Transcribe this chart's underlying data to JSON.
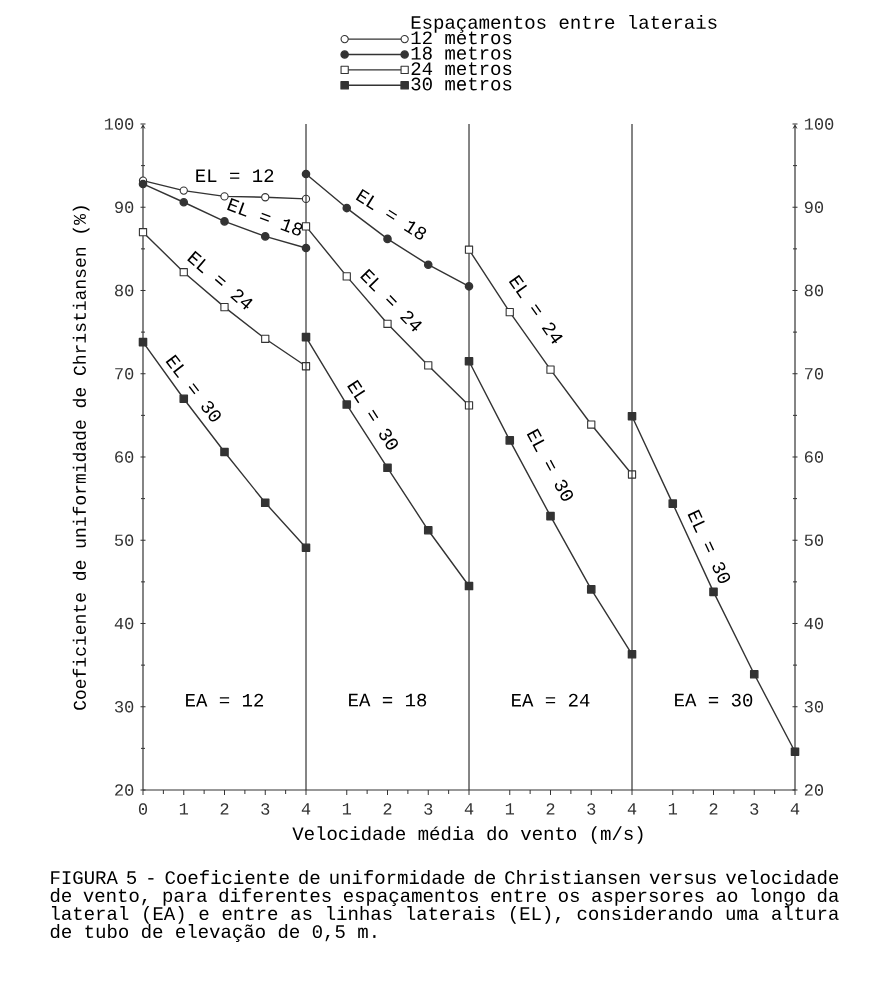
{
  "chart_data": [
    {
      "type": "line",
      "x": [
        0,
        1,
        2,
        3,
        4
      ],
      "xlim": [
        0,
        4
      ],
      "ylim": [
        20,
        100
      ],
      "xticks": [
        0,
        1,
        2,
        3,
        4
      ],
      "yticks": [
        20,
        30,
        40,
        50,
        60,
        70,
        80,
        90,
        100
      ],
      "ylabel": "Coeficiente de uniformidade de Christiansen (%)",
      "series": [
        {
          "color": "#333333",
          "marker": "circle",
          "values": [
            93.2,
            92.0,
            91.3,
            91.2,
            91.0
          ]
        },
        {
          "color": "#333333",
          "marker": "circle",
          "values": [
            92.8,
            90.6,
            88.3,
            86.5,
            85.1
          ]
        },
        {
          "color": "#333333",
          "marker": "square",
          "values": [
            87.0,
            82.2,
            78.0,
            74.2,
            70.9
          ]
        },
        {
          "color": "#333333",
          "marker": "square",
          "values": [
            73.8,
            67.0,
            60.6,
            54.5,
            49.1
          ]
        }
      ],
      "annotations": [
        "EL = 12",
        "EL = 18",
        "EL = 24",
        "EL = 30",
        "EA = 12",
        "FIGURA 5 - Coeficiente de uniformidade de Christiansen versus velocidade de vento, para diferentes espaçamentos entre os aspersores ao longo da lateral (EA) e entre as linhas laterais (EL), considerando uma altura de tubo de elevação de 0,5 m."
      ]
    },
    {
      "type": "line",
      "x": [
        0,
        1,
        2,
        3,
        4
      ],
      "xlim": [
        0,
        4
      ],
      "ylim": [
        20,
        100
      ],
      "xticks": [
        1,
        2,
        3,
        4
      ],
      "tick_labels": "x",
      "xlabel": "Velocidade média do vento (m/s)",
      "series": [
        {
          "color": "#333333",
          "marker": "circle",
          "values": [
            null,
            null,
            null,
            null,
            null
          ]
        },
        {
          "color": "#333333",
          "marker": "circle",
          "values": [
            94.0,
            89.9,
            86.2,
            83.1,
            80.5
          ]
        },
        {
          "color": "#333333",
          "marker": "square",
          "values": [
            87.7,
            81.7,
            76.0,
            71.0,
            66.2
          ]
        },
        {
          "color": "#333333",
          "marker": "square",
          "values": [
            74.4,
            66.3,
            58.7,
            51.2,
            44.5
          ]
        }
      ],
      "annotations": [
        "EL = 18",
        "EL = 24",
        "EL = 30",
        "EA = 18"
      ]
    },
    {
      "type": "line",
      "x": [
        0,
        1,
        2,
        3,
        4
      ],
      "xlim": [
        0,
        4
      ],
      "ylim": [
        20,
        100
      ],
      "xticks": [
        1,
        2,
        3,
        4
      ],
      "tick_labels": "x",
      "series": [
        {
          "color": "#333333",
          "marker": "circle",
          "values": [
            null,
            null,
            null,
            null,
            null
          ]
        },
        {
          "color": "#333333",
          "marker": "circle",
          "values": [
            null,
            null,
            null,
            null,
            null
          ]
        },
        {
          "color": "#333333",
          "marker": "square",
          "values": [
            84.9,
            77.4,
            70.5,
            63.9,
            57.9
          ]
        },
        {
          "color": "#333333",
          "marker": "square",
          "values": [
            71.5,
            62.0,
            52.9,
            44.1,
            36.3
          ]
        }
      ],
      "annotations": [
        "EL = 24",
        "EL = 30",
        "EA = 24"
      ]
    },
    {
      "type": "line",
      "x": [
        0,
        1,
        2,
        3,
        4
      ],
      "xlim": [
        0,
        4
      ],
      "ylim": [
        20,
        100
      ],
      "xticks": [
        1,
        2,
        3,
        4
      ],
      "yticks": [
        20,
        30,
        40,
        50,
        60,
        70,
        80,
        90,
        100
      ],
      "legend": "top",
      "legend_title": "Espaçamentos entre laterais",
      "series": [
        {
          "name": "12 metros",
          "color": "#333333",
          "marker": "circle",
          "values": [
            null,
            null,
            null,
            null,
            null
          ]
        },
        {
          "name": "18 metros",
          "color": "#333333",
          "marker": "circle",
          "values": [
            null,
            null,
            null,
            null,
            null
          ]
        },
        {
          "name": "24 metros",
          "color": "#333333",
          "marker": "square",
          "values": [
            null,
            null,
            null,
            null,
            null
          ]
        },
        {
          "name": "30 metros",
          "color": "#333333",
          "marker": "square",
          "values": [
            64.9,
            54.4,
            43.8,
            33.9,
            24.6
          ]
        }
      ],
      "annotations": [
        "EL = 30",
        "EA = 30"
      ]
    }
  ]
}
